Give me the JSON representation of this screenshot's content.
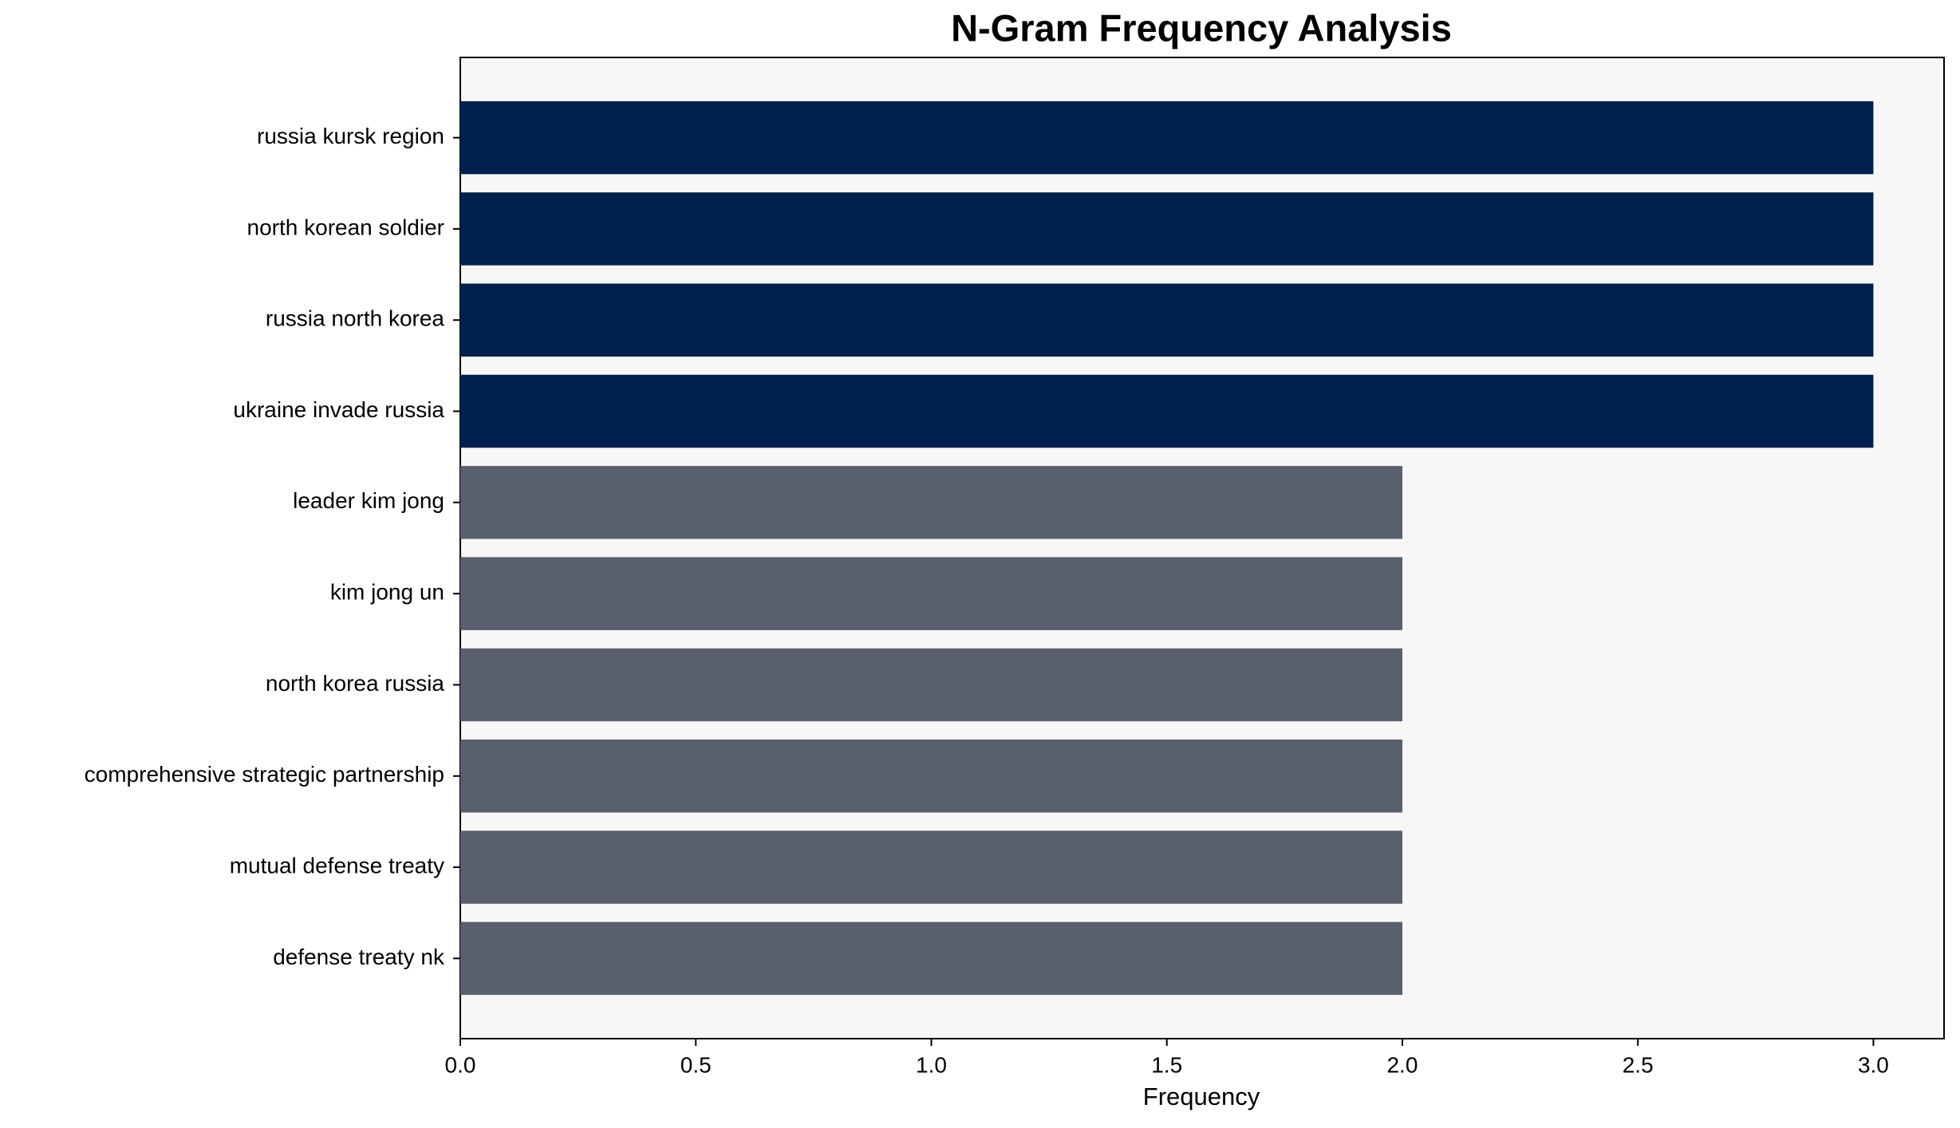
{
  "chart_data": {
    "type": "barh",
    "title": "N-Gram Frequency Analysis",
    "x_label": "Frequency",
    "categories": [
      "russia kursk region",
      "north korean soldier",
      "russia north korea",
      "ukraine invade russia",
      "leader kim jong",
      "kim jong un",
      "north korea russia",
      "comprehensive strategic partnership",
      "mutual defense treaty",
      "defense treaty nk"
    ],
    "values": [
      3,
      3,
      3,
      3,
      2,
      2,
      2,
      2,
      2,
      2
    ],
    "colors": [
      "#00214d",
      "#00214d",
      "#00214d",
      "#00214d",
      "#5a5f6e",
      "#5a5f6e",
      "#5a5f6e",
      "#5a5f6e",
      "#5a5f6e",
      "#5a5f6e"
    ],
    "xlim": [
      0,
      3.15
    ],
    "xticks": [
      {
        "value": 0,
        "label": "0.0"
      },
      0.5,
      {
        "value": 1,
        "label": "1.0"
      },
      1.5,
      {
        "value": 2,
        "label": "2.0"
      },
      2.5,
      {
        "value": 3,
        "label": "3.0"
      }
    ],
    "grid": false
  }
}
